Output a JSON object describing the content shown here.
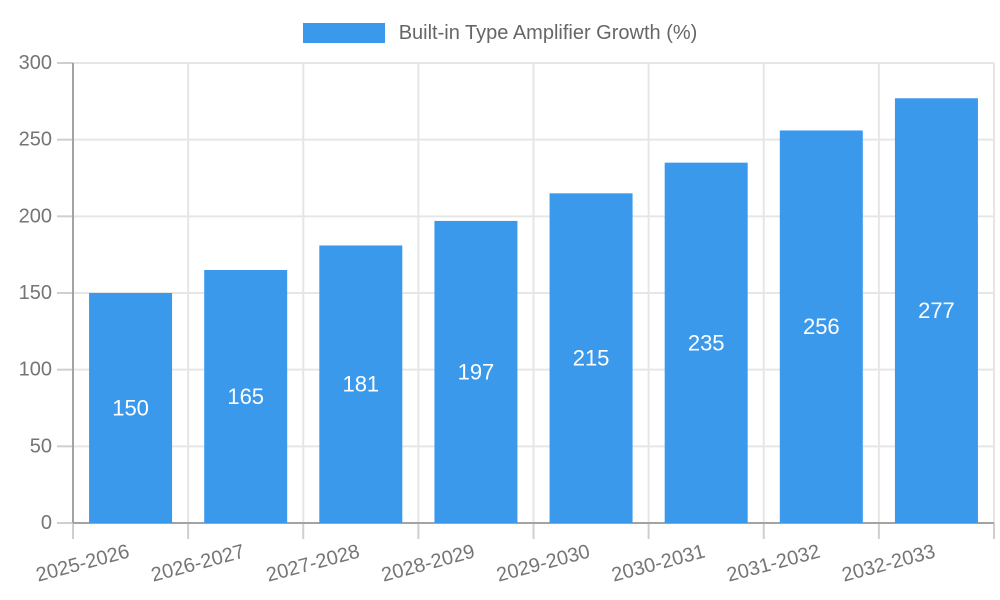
{
  "legend": {
    "label": "Built-in Type Amplifier Growth (%)"
  },
  "chart_data": {
    "type": "bar",
    "title": "Built-in Type Amplifier Growth (%)",
    "series_name": "Built-in Type Amplifier Growth (%)",
    "categories": [
      "2025-2026",
      "2026-2027",
      "2027-2028",
      "2028-2029",
      "2029-2030",
      "2030-2031",
      "2031-2032",
      "2032-2033"
    ],
    "values": [
      150,
      165,
      181,
      197,
      215,
      235,
      256,
      277
    ],
    "bar_value_labels": [
      "150",
      "165",
      "181",
      "197",
      "215",
      "235",
      "256",
      "277"
    ],
    "xlabel": "",
    "ylabel": "",
    "ylim": [
      0,
      300
    ],
    "ytick_step": 50,
    "yticks": [
      0,
      50,
      100,
      150,
      200,
      250,
      300
    ],
    "grid": true,
    "legend_position": "top",
    "bar_labels_position": "inside-center",
    "x_label_rotation_deg": -15,
    "colors": {
      "bar": "#3B99EC",
      "bar_label": "#FFFFFF",
      "tick_label": "#757575",
      "legend_text": "#666666",
      "grid_line": "#E6E6E6",
      "axis_line": "#A3A3A3",
      "tick_mark": "#CFCFCF",
      "background": "#FFFFFF"
    }
  }
}
